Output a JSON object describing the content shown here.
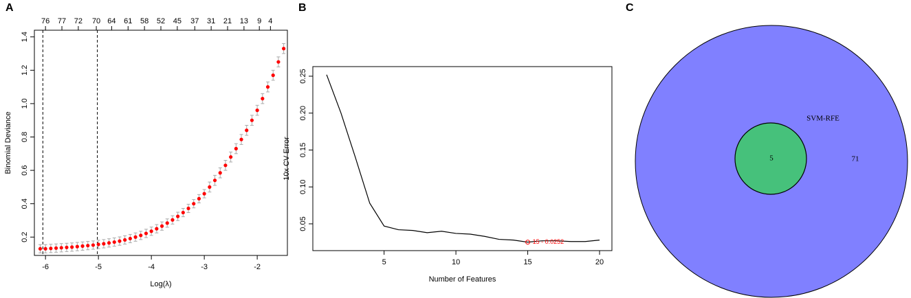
{
  "chart_data": [
    {
      "type": "errorpoints",
      "panel": "A",
      "xlabel": "Log(λ)",
      "ylabel": "Binomial Deviance",
      "color": "#ff0000",
      "error_color": "#a9a9a9",
      "x": [
        -6.1,
        -6.0,
        -5.9,
        -5.8,
        -5.7,
        -5.6,
        -5.5,
        -5.4,
        -5.3,
        -5.2,
        -5.1,
        -5.0,
        -4.9,
        -4.8,
        -4.7,
        -4.6,
        -4.5,
        -4.4,
        -4.3,
        -4.2,
        -4.1,
        -4.0,
        -3.9,
        -3.8,
        -3.7,
        -3.6,
        -3.5,
        -3.4,
        -3.3,
        -3.2,
        -3.1,
        -3.0,
        -2.9,
        -2.8,
        -2.7,
        -2.6,
        -2.5,
        -2.4,
        -2.3,
        -2.2,
        -2.1,
        -2.0,
        -1.9,
        -1.8,
        -1.7,
        -1.6,
        -1.5
      ],
      "values": [
        0.13,
        0.13,
        0.132,
        0.134,
        0.136,
        0.138,
        0.14,
        0.143,
        0.146,
        0.149,
        0.152,
        0.156,
        0.16,
        0.165,
        0.17,
        0.176,
        0.183,
        0.191,
        0.2,
        0.21,
        0.222,
        0.235,
        0.25,
        0.266,
        0.284,
        0.303,
        0.324,
        0.347,
        0.372,
        0.4,
        0.43,
        0.46,
        0.5,
        0.54,
        0.585,
        0.63,
        0.68,
        0.73,
        0.785,
        0.84,
        0.9,
        0.96,
        1.03,
        1.1,
        1.17,
        1.25,
        1.33
      ],
      "errors": [
        0.025,
        0.025,
        0.025,
        0.025,
        0.025,
        0.025,
        0.025,
        0.025,
        0.025,
        0.025,
        0.025,
        0.025,
        0.025,
        0.025,
        0.025,
        0.025,
        0.025,
        0.025,
        0.025,
        0.025,
        0.025,
        0.025,
        0.025,
        0.025,
        0.025,
        0.025,
        0.025,
        0.025,
        0.025,
        0.025,
        0.025,
        0.025,
        0.03,
        0.03,
        0.03,
        0.03,
        0.03,
        0.03,
        0.03,
        0.03,
        0.03,
        0.03,
        0.03,
        0.03,
        0.03,
        0.03,
        0.03
      ],
      "vlines": [
        -6.05,
        -5.02
      ],
      "xlim": [
        -6.21,
        -1.43
      ],
      "ylim": [
        0.09,
        1.44
      ],
      "xticks": [
        -6,
        -5,
        -4,
        -3,
        -2
      ],
      "yticks": [
        0.2,
        0.4,
        0.6,
        0.8,
        {
          "value": 1,
          "label": "1.0"
        },
        1.2,
        1.4
      ],
      "x2ticks": [
        {
          "value": -6.0,
          "label": "76"
        },
        {
          "value": -5.69,
          "label": "77"
        },
        {
          "value": -5.38,
          "label": "72"
        },
        {
          "value": -5.04,
          "label": "70"
        },
        {
          "value": -4.75,
          "label": "64"
        },
        {
          "value": -4.44,
          "label": "61"
        },
        {
          "value": -4.13,
          "label": "58"
        },
        {
          "value": -3.82,
          "label": "52"
        },
        {
          "value": -3.51,
          "label": "45"
        },
        {
          "value": -3.18,
          "label": "37"
        },
        {
          "value": -2.87,
          "label": "31"
        },
        {
          "value": -2.56,
          "label": "21"
        },
        {
          "value": -2.25,
          "label": "13"
        },
        {
          "value": -1.96,
          "label": "9"
        },
        {
          "value": -1.75,
          "label": "4"
        }
      ]
    },
    {
      "type": "line",
      "panel": "B",
      "xlabel": "Number of Features",
      "ylabel": "10x CV Error",
      "color": "#000000",
      "x": [
        1,
        2,
        3,
        4,
        5,
        6,
        7,
        8,
        9,
        10,
        11,
        12,
        13,
        14,
        15,
        16,
        17,
        18,
        19,
        20
      ],
      "values": [
        0.252,
        0.2,
        0.14,
        0.078,
        0.047,
        0.042,
        0.041,
        0.038,
        0.04,
        0.037,
        0.036,
        0.033,
        0.029,
        0.028,
        0.0252,
        0.027,
        0.027,
        0.026,
        0.026,
        0.028
      ],
      "highlight": {
        "x": 15,
        "y": 0.0252,
        "label": "15 - 0.0252",
        "color": "#ff0000"
      },
      "xlim": [
        0.04,
        20.86
      ],
      "ylim": [
        0.0137,
        0.263
      ],
      "xticks": [
        5,
        10,
        15,
        20
      ],
      "yticks": [
        0.05,
        {
          "value": 0.1,
          "label": "0.10"
        },
        0.15,
        {
          "value": 0.2,
          "label": "0.20"
        },
        0.25
      ]
    },
    {
      "type": "venn",
      "panel": "C",
      "outer_color": "#8080ff",
      "sets": [
        {
          "name": "SVM-RFE",
          "color": "#46c17b"
        }
      ],
      "regions": [
        5,
        71
      ]
    }
  ]
}
